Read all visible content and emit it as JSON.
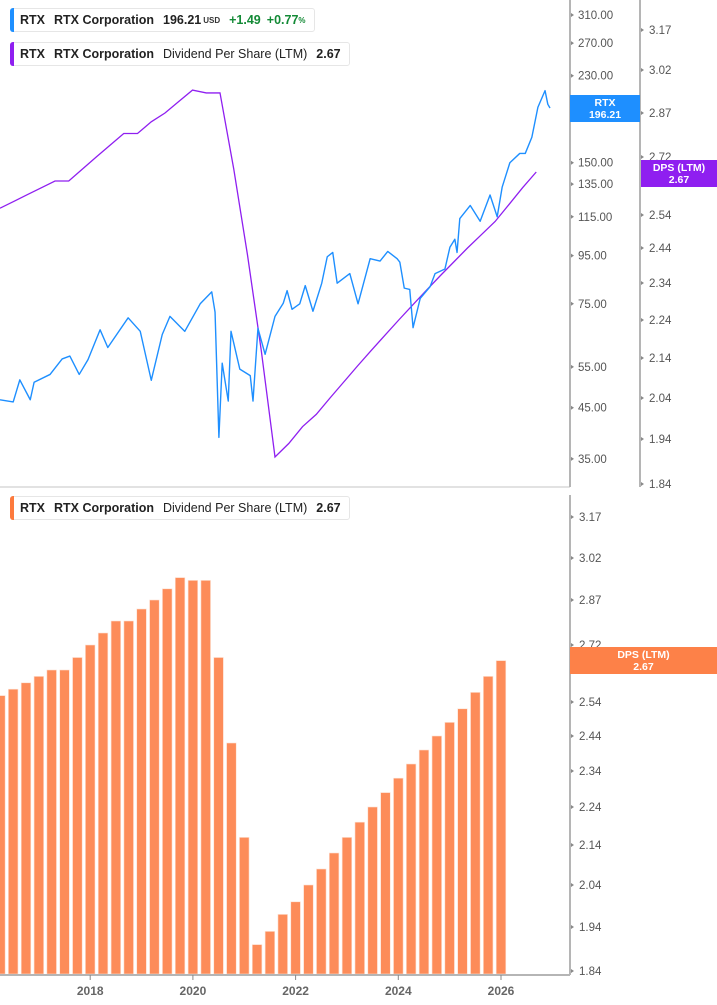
{
  "legends": {
    "price": {
      "ticker": "RTX",
      "name": "RTX Corporation",
      "price": "196.21",
      "currency": "USD",
      "change": "+1.49",
      "change_pct": "+0.77",
      "pct_sign": "%"
    },
    "dps_top": {
      "ticker": "RTX",
      "name": "RTX Corporation",
      "metric": "Dividend Per Share (LTM)",
      "value": "2.67"
    },
    "dps_bottom": {
      "ticker": "RTX",
      "name": "RTX Corporation",
      "metric": "Dividend Per Share (LTM)",
      "value": "2.67"
    }
  },
  "tags": {
    "price": {
      "title": "RTX",
      "value": "196.21"
    },
    "dps_top": {
      "title": "DPS (LTM)",
      "value": "2.67"
    },
    "dps_bottom": {
      "title": "DPS (LTM)",
      "value": "2.67"
    }
  },
  "colors": {
    "price_line": "#1e8fff",
    "dps_line": "#8f1ff0",
    "dps_bar": "#fd8c59",
    "up": "#138a36"
  },
  "chart_data": [
    {
      "type": "line",
      "title": "",
      "x_unit": "year",
      "y_scale": "log",
      "price_axis_ticks": [
        "310.00",
        "270.00",
        "230.00",
        "150.00",
        "135.00",
        "115.00",
        "95.00",
        "75.00",
        "55.00",
        "45.00",
        "35.00"
      ],
      "dps_axis_ticks": [
        "3.17",
        "3.02",
        "2.87",
        "2.72",
        "2.64",
        "2.54",
        "2.44",
        "2.34",
        "2.24",
        "2.14",
        "2.04",
        "1.94",
        "1.84"
      ],
      "series": [
        {
          "name": "RTX",
          "axis": "left",
          "points": [
            [
              2016.25,
              46.8
            ],
            [
              2016.49,
              46.3
            ],
            [
              2016.61,
              51.6
            ],
            [
              2016.8,
              46.8
            ],
            [
              2016.87,
              51.0
            ],
            [
              2017.16,
              53.0
            ],
            [
              2017.38,
              57.2
            ],
            [
              2017.52,
              58.0
            ],
            [
              2017.69,
              53.0
            ],
            [
              2017.85,
              57.0
            ],
            [
              2018.07,
              66.0
            ],
            [
              2018.21,
              60.5
            ],
            [
              2018.58,
              70.0
            ],
            [
              2018.8,
              65.5
            ],
            [
              2019.0,
              51.5
            ],
            [
              2019.2,
              64.5
            ],
            [
              2019.34,
              70.5
            ],
            [
              2019.61,
              65.5
            ],
            [
              2019.89,
              75.0
            ],
            [
              2020.1,
              79.5
            ],
            [
              2020.16,
              72.0
            ],
            [
              2020.23,
              38.9
            ],
            [
              2020.29,
              56.0
            ],
            [
              2020.4,
              46.5
            ],
            [
              2020.45,
              65.5
            ],
            [
              2020.61,
              54.4
            ],
            [
              2020.8,
              52.7
            ],
            [
              2020.85,
              46.5
            ],
            [
              2020.94,
              66.5
            ],
            [
              2021.07,
              58.5
            ],
            [
              2021.25,
              70.5
            ],
            [
              2021.4,
              75.2
            ],
            [
              2021.47,
              80.0
            ],
            [
              2021.56,
              73.0
            ],
            [
              2021.7,
              75.0
            ],
            [
              2021.8,
              82.0
            ],
            [
              2021.94,
              72.3
            ],
            [
              2022.1,
              83.0
            ],
            [
              2022.2,
              94.5
            ],
            [
              2022.3,
              96.5
            ],
            [
              2022.38,
              83.0
            ],
            [
              2022.61,
              87.0
            ],
            [
              2022.76,
              75.0
            ],
            [
              2022.98,
              93.6
            ],
            [
              2023.16,
              92.5
            ],
            [
              2023.3,
              97.0
            ],
            [
              2023.47,
              93.6
            ],
            [
              2023.52,
              92.0
            ],
            [
              2023.6,
              81.0
            ],
            [
              2023.7,
              80.5
            ],
            [
              2023.76,
              66.7
            ],
            [
              2023.89,
              77.0
            ],
            [
              2024.07,
              81.6
            ],
            [
              2024.16,
              87.0
            ],
            [
              2024.34,
              89.0
            ],
            [
              2024.43,
              99.0
            ],
            [
              2024.52,
              103.0
            ],
            [
              2024.56,
              96.5
            ],
            [
              2024.61,
              114.0
            ],
            [
              2024.8,
              121.6
            ],
            [
              2024.98,
              112.5
            ],
            [
              2025.16,
              128.0
            ],
            [
              2025.29,
              115.0
            ],
            [
              2025.38,
              133.0
            ],
            [
              2025.52,
              150.0
            ],
            [
              2025.7,
              157.0
            ],
            [
              2025.8,
              157.0
            ],
            [
              2025.92,
              170.0
            ],
            [
              2026.03,
              197.0
            ],
            [
              2026.16,
              213.8
            ],
            [
              2026.21,
              200.0
            ],
            [
              2026.25,
              196.21
            ]
          ]
        },
        {
          "name": "DPS (LTM)",
          "axis": "right",
          "source": "dps"
        }
      ]
    },
    {
      "type": "bar",
      "title": "",
      "x_ticks": [
        "2018",
        "2020",
        "2022",
        "2024",
        "2026"
      ],
      "y_ticks": [
        "3.17",
        "3.02",
        "2.87",
        "2.72",
        "2.64",
        "2.54",
        "2.44",
        "2.34",
        "2.24",
        "2.14",
        "2.04",
        "1.94",
        "1.84"
      ],
      "ylim": [
        1.84,
        3.17
      ],
      "series": [
        {
          "name": "DPS (LTM)",
          "points": [
            [
              2016.25,
              2.56
            ],
            [
              2016.5,
              2.58
            ],
            [
              2016.75,
              2.6
            ],
            [
              2017.0,
              2.62
            ],
            [
              2017.25,
              2.64
            ],
            [
              2017.5,
              2.64
            ],
            [
              2017.75,
              2.68
            ],
            [
              2018.0,
              2.72
            ],
            [
              2018.25,
              2.76
            ],
            [
              2018.5,
              2.8
            ],
            [
              2018.75,
              2.8
            ],
            [
              2019.0,
              2.84
            ],
            [
              2019.25,
              2.87
            ],
            [
              2019.5,
              2.91
            ],
            [
              2019.75,
              2.95
            ],
            [
              2020.0,
              2.94
            ],
            [
              2020.25,
              2.94
            ],
            [
              2020.5,
              2.68
            ],
            [
              2020.75,
              2.42
            ],
            [
              2021.0,
              2.16
            ],
            [
              2021.25,
              1.9
            ],
            [
              2021.5,
              1.93
            ],
            [
              2021.75,
              1.97
            ],
            [
              2022.0,
              2.0
            ],
            [
              2022.25,
              2.04
            ],
            [
              2022.5,
              2.08
            ],
            [
              2022.75,
              2.12
            ],
            [
              2023.0,
              2.16
            ],
            [
              2023.25,
              2.2
            ],
            [
              2023.5,
              2.24
            ],
            [
              2023.75,
              2.28
            ],
            [
              2024.0,
              2.32
            ],
            [
              2024.25,
              2.36
            ],
            [
              2024.5,
              2.4
            ],
            [
              2024.75,
              2.44
            ],
            [
              2025.0,
              2.48
            ],
            [
              2025.25,
              2.52
            ],
            [
              2025.5,
              2.57
            ],
            [
              2025.75,
              2.62
            ],
            [
              2026.0,
              2.67
            ]
          ]
        }
      ]
    }
  ]
}
